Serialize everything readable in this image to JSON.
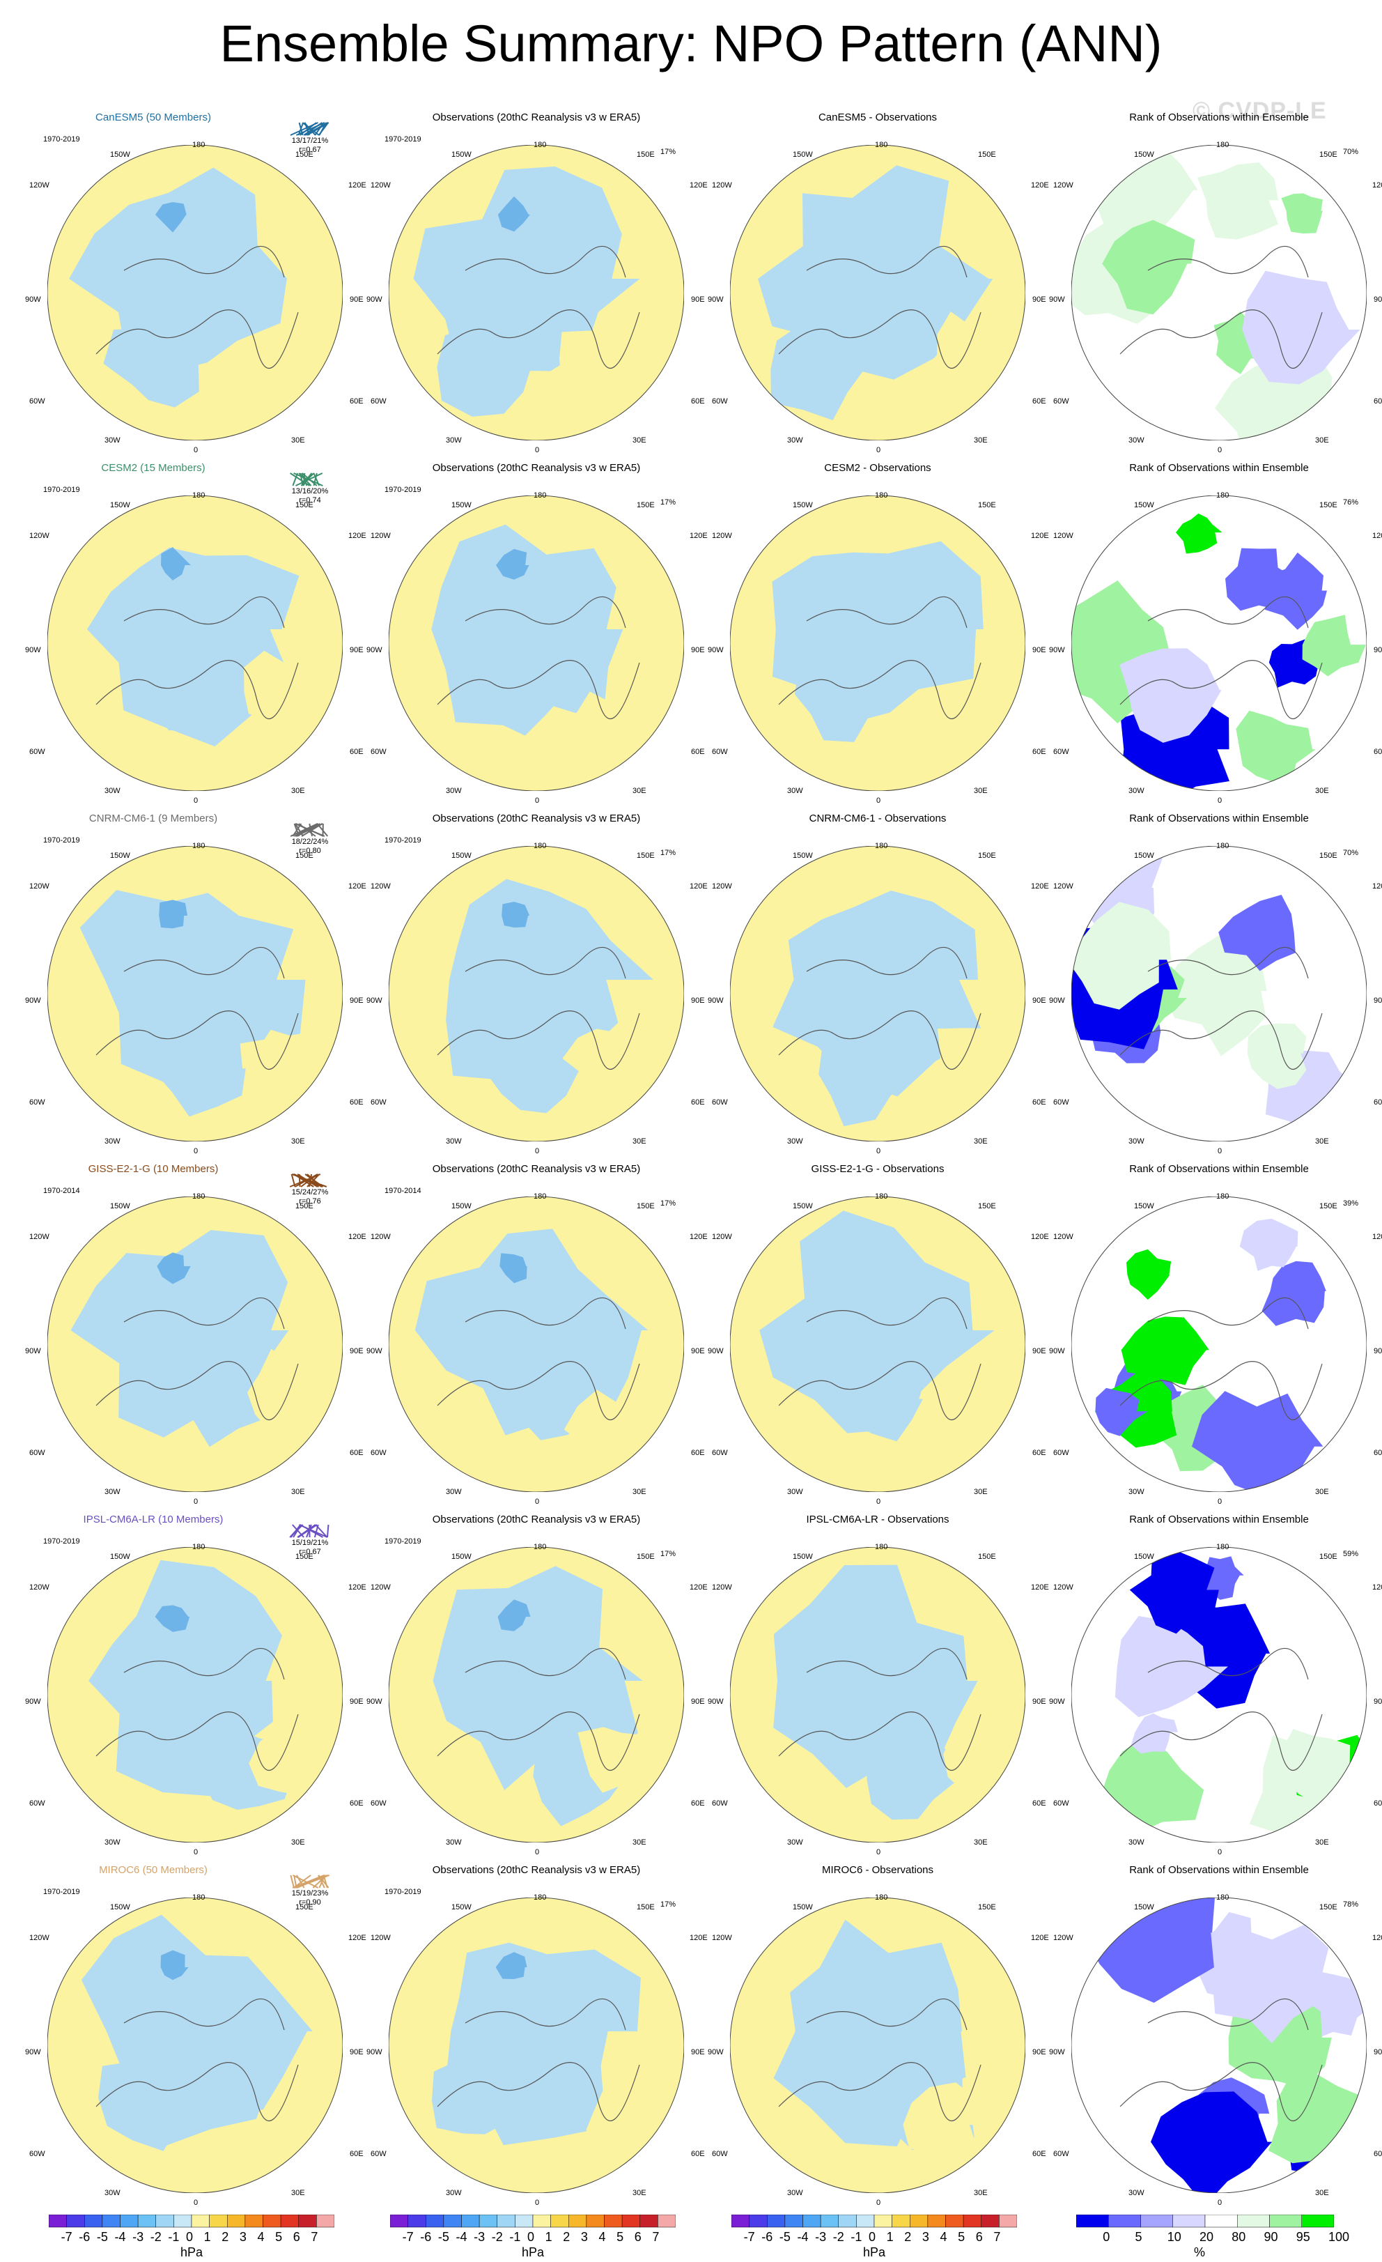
{
  "title": "Ensemble Summary: NPO Pattern (ANN)",
  "watermark": "© CVDP-LE",
  "colors": {
    "negative": "#b3dcf2",
    "negative_strong": "#6fb4e8",
    "positive": "#fbf3a0",
    "positive_strong": "#f5d23a",
    "rank_low": "#0000ee",
    "rank_mid_low": "#6a6aff",
    "rank_light_low": "#d7d7ff",
    "rank_high": "#00ee00",
    "rank_mid_high": "#9ff29f",
    "rank_light_high": "#e3f9e3",
    "coast": "#555555"
  },
  "longitude_labels": {
    "top": "180",
    "ur": "150E",
    "ul": "150W",
    "r1": "120E",
    "l1": "120W",
    "r2": "90E",
    "l2": "90W",
    "r3": "60E",
    "l3": "60W",
    "br": "30E",
    "bl": "30W",
    "bottom": "0"
  },
  "obs_title": "Observations (20thC Reanalysis v3 w ERA5)",
  "rank_title": "Rank of Observations within Ensemble",
  "rows": [
    {
      "model": "CanESM5 (50 Members)",
      "model_color": "#1f6fa0",
      "stats": "13/17/21%",
      "corr": "r=0.67",
      "period": "1970-2019",
      "obs_stat": "17%",
      "diff_title": "CanESM5 - Observations",
      "rank_stat": "70%"
    },
    {
      "model": "CESM2 (15 Members)",
      "model_color": "#3b8f6a",
      "stats": "13/16/20%",
      "corr": "r=0.74",
      "period": "1970-2019",
      "obs_stat": "17%",
      "diff_title": "CESM2 - Observations",
      "rank_stat": "76%"
    },
    {
      "model": "CNRM-CM6-1 (9 Members)",
      "model_color": "#6b6b6b",
      "stats": "18/22/24%",
      "corr": "r=0.80",
      "period": "1970-2019",
      "obs_stat": "17%",
      "diff_title": "CNRM-CM6-1 - Observations",
      "rank_stat": "70%"
    },
    {
      "model": "GISS-E2-1-G (10 Members)",
      "model_color": "#8a4a1a",
      "stats": "15/24/27%",
      "corr": "r=0.76",
      "period": "1970-2014",
      "obs_stat": "17%",
      "diff_title": "GISS-E2-1-G - Observations",
      "rank_stat": "39%"
    },
    {
      "model": "IPSL-CM6A-LR (10 Members)",
      "model_color": "#6a4fc2",
      "stats": "15/19/21%",
      "corr": "r=0.67",
      "period": "1970-2019",
      "obs_stat": "17%",
      "diff_title": "IPSL-CM6A-LR - Observations",
      "rank_stat": "59%"
    },
    {
      "model": "MIROC6 (50 Members)",
      "model_color": "#d4a36a",
      "stats": "15/19/23%",
      "corr": "r=0.90",
      "period": "1970-2019",
      "obs_stat": "17%",
      "diff_title": "MIROC6 - Observations",
      "rank_stat": "78%"
    }
  ],
  "colorbar_hpa": {
    "labels": [
      "-7",
      "-6",
      "-5",
      "-4",
      "-3",
      "-2",
      "-1",
      "0",
      "1",
      "2",
      "3",
      "4",
      "5",
      "6",
      "7"
    ],
    "unit": "hPa",
    "colors": [
      "#7a1fd6",
      "#4b3be8",
      "#3a62f0",
      "#3f85f4",
      "#4ea6f5",
      "#6cc1f5",
      "#9fd6f5",
      "#c8e7f7",
      "#fbf3a0",
      "#f7d64a",
      "#f6b82a",
      "#f4891e",
      "#ef5a1e",
      "#e23522",
      "#c8202a",
      "#f4a8a8"
    ]
  },
  "colorbar_rank": {
    "labels": [
      "0",
      "5",
      "10",
      "20",
      "80",
      "90",
      "95",
      "100"
    ],
    "unit": "%",
    "colors": [
      "#0000ee",
      "#6a6aff",
      "#a5a5ff",
      "#d7d7ff",
      "#ffffff",
      "#e3f9e3",
      "#9ff29f",
      "#00ee00"
    ]
  }
}
